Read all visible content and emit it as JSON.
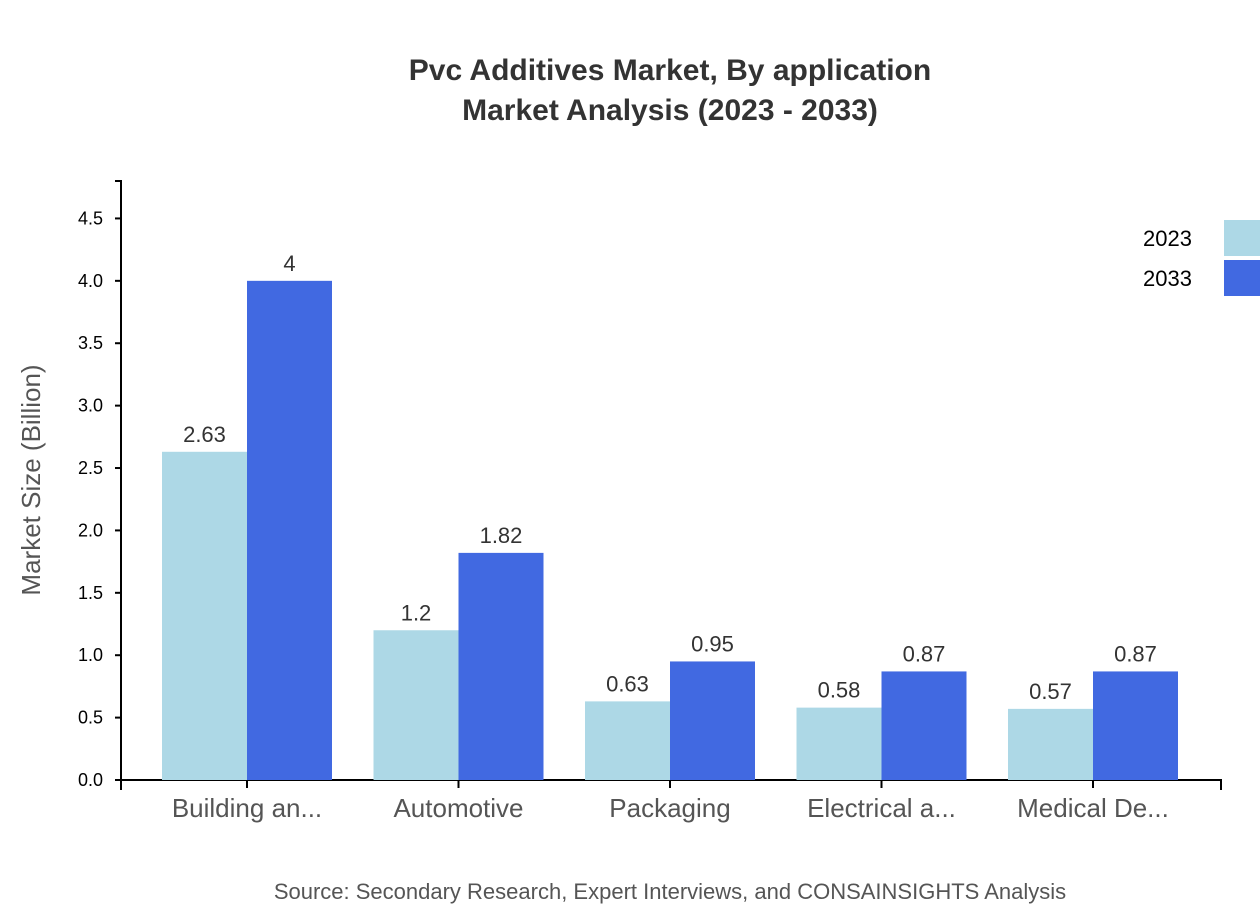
{
  "chart_data": {
    "type": "bar",
    "title": "Pvc Additives Market, By application",
    "subtitle": "Market Analysis (2023 - 2033)",
    "ylabel": "Market Size (Billion)",
    "xlabel": "",
    "categories": [
      "Building an...",
      "Automotive",
      "Packaging",
      "Electrical a...",
      "Medical De..."
    ],
    "series": [
      {
        "name": "2023",
        "color": "#add8e6",
        "values": [
          2.63,
          1.2,
          0.63,
          0.58,
          0.57
        ]
      },
      {
        "name": "2033",
        "color": "#4169e1",
        "values": [
          4,
          1.82,
          0.95,
          0.87,
          0.87
        ]
      }
    ],
    "ylim": [
      0,
      4.8
    ],
    "yticks": [
      "0.0",
      "0.5",
      "1.0",
      "1.5",
      "2.0",
      "2.5",
      "3.0",
      "3.5",
      "4.0",
      "4.5"
    ],
    "grid": false,
    "legend": "top-right",
    "source": "Source: Secondary Research, Expert Interviews, and CONSAINSIGHTS Analysis"
  }
}
